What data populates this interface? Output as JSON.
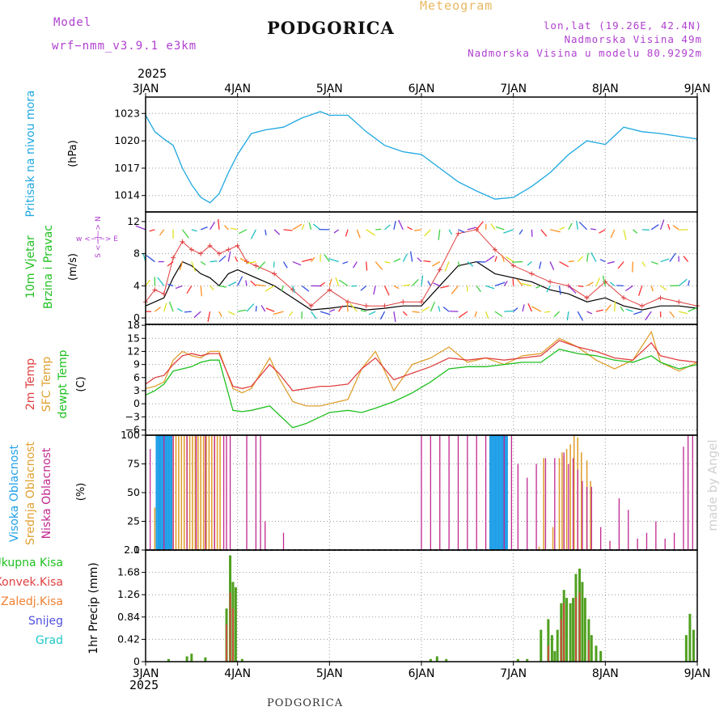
{
  "header": {
    "model_label": "Model",
    "model_name": "wrf−nmm_v3.9.1  e3km",
    "title": "PODGORICA",
    "subtitle": "Meteogram",
    "lonlat": "lon,lat (19.26E, 42.4N)",
    "altitude": "Nadmorska Visina 49m",
    "model_altitude": "Nadmorska Visina u modelu 80.9292m",
    "year_top": "2025",
    "year_bottom": "2025",
    "bottom_title": "PODGORICA",
    "watermark": "made by Angel"
  },
  "colors": {
    "pressure": "#1ea8e0",
    "temp2m": "#e04040",
    "sfc": "#e0a030",
    "dew": "#20c020",
    "high_cloud": "#20a0e8",
    "mid_cloud": "#e0a030",
    "low_cloud": "#c02890",
    "precip": "#50a020",
    "conv": "#e04040"
  },
  "chart_data": [
    {
      "type": "line",
      "title": "Pritisak na nivou mora",
      "ylabel": "(hPa)",
      "x_labels": [
        "3JAN",
        "4JAN",
        "5JAN",
        "6JAN",
        "7JAN",
        "8JAN",
        "9JAN"
      ],
      "yticks": [
        "1014",
        "1017",
        "1020",
        "1023"
      ],
      "ylim": [
        1012.2,
        1024.8
      ],
      "series": [
        {
          "name": "Pritisak",
          "x": [
            0,
            0.1,
            0.2,
            0.3,
            0.4,
            0.5,
            0.6,
            0.7,
            0.8,
            0.9,
            1.0,
            1.15,
            1.3,
            1.5,
            1.7,
            1.9,
            2.0,
            2.2,
            2.4,
            2.6,
            2.8,
            3.0,
            3.2,
            3.4,
            3.6,
            3.8,
            4.0,
            4.2,
            4.4,
            4.6,
            4.8,
            5.0,
            5.2,
            5.4,
            5.6,
            5.8,
            6.0
          ],
          "values": [
            1022.8,
            1021.0,
            1020.2,
            1019.5,
            1017.0,
            1015.2,
            1013.8,
            1013.2,
            1014.2,
            1016.5,
            1018.5,
            1020.8,
            1021.2,
            1021.5,
            1022.5,
            1023.2,
            1022.8,
            1022.8,
            1021.0,
            1019.5,
            1018.8,
            1018.5,
            1017.0,
            1015.5,
            1014.5,
            1013.6,
            1013.8,
            1015.0,
            1016.5,
            1018.5,
            1020.0,
            1019.6,
            1021.5,
            1021.0,
            1020.8,
            1020.5,
            1020.2
          ]
        }
      ]
    },
    {
      "type": "line",
      "title": "10m Vjetar Brzina i Pravac",
      "ylabel": "(m/s)",
      "compass_label": "w <−|−> E",
      "compass_ns": "S <−|−> N",
      "yticks": [
        "0",
        "4",
        "8",
        "12"
      ],
      "ylim": [
        -0.8,
        13.2
      ],
      "series": [
        {
          "name": "Brzina",
          "x": [
            0,
            0.1,
            0.2,
            0.3,
            0.4,
            0.5,
            0.6,
            0.7,
            0.8,
            0.9,
            1.0,
            1.1,
            1.2,
            1.4,
            1.6,
            1.8,
            2.0,
            2.2,
            2.4,
            2.6,
            2.8,
            3.0,
            3.2,
            3.4,
            3.6,
            3.8,
            4.0,
            4.2,
            4.4,
            4.6,
            4.8,
            5.0,
            5.2,
            5.4,
            5.6,
            5.8,
            6.0
          ],
          "values": [
            1.5,
            2.0,
            2.5,
            5.0,
            7.0,
            6.5,
            5.5,
            5.0,
            4.0,
            5.5,
            6.0,
            5.5,
            5.0,
            4.0,
            2.5,
            1.0,
            1.2,
            1.5,
            1.0,
            1.2,
            1.5,
            1.5,
            4.0,
            6.5,
            7.0,
            5.5,
            5.0,
            4.5,
            3.5,
            3.0,
            2.0,
            2.5,
            1.5,
            1.0,
            1.5,
            1.5,
            1.2
          ]
        },
        {
          "name": "Udari",
          "x": [
            0,
            0.1,
            0.2,
            0.3,
            0.4,
            0.5,
            0.6,
            0.7,
            0.8,
            0.9,
            1.0,
            1.1,
            1.2,
            1.4,
            1.6,
            1.8,
            2.0,
            2.2,
            2.4,
            2.6,
            2.8,
            3.0,
            3.2,
            3.4,
            3.6,
            3.8,
            4.0,
            4.2,
            4.4,
            4.6,
            4.8,
            5.0,
            5.2,
            5.4,
            5.6,
            5.8,
            6.0
          ],
          "values": [
            2.0,
            3.5,
            3.0,
            7.5,
            9.5,
            8.5,
            8.0,
            9.0,
            8.0,
            8.5,
            9.0,
            7.0,
            6.5,
            5.5,
            3.5,
            1.5,
            3.5,
            2.0,
            1.5,
            1.5,
            2.0,
            2.0,
            6.0,
            10.5,
            11.0,
            8.5,
            6.5,
            5.5,
            4.5,
            4.0,
            2.5,
            4.5,
            2.5,
            1.5,
            2.5,
            2.0,
            1.5
          ]
        }
      ]
    },
    {
      "type": "line",
      "title": "2m Temp / SFC Temp / dewpt Temp",
      "ylabel": "(C)",
      "yticks": [
        "−6",
        "−3",
        "0",
        "3",
        "6",
        "9",
        "12",
        "15",
        "18"
      ],
      "ylim": [
        -7.2,
        18.2
      ],
      "series": [
        {
          "name": "2m Temp",
          "x": [
            0,
            0.1,
            0.2,
            0.3,
            0.4,
            0.5,
            0.6,
            0.7,
            0.8,
            0.95,
            1.05,
            1.15,
            1.35,
            1.45,
            1.6,
            1.75,
            1.9,
            2.0,
            2.2,
            2.35,
            2.5,
            2.7,
            2.9,
            3.1,
            3.3,
            3.5,
            3.7,
            3.9,
            4.1,
            4.3,
            4.5,
            4.7,
            4.9,
            5.1,
            5.3,
            5.5,
            5.6,
            5.8,
            6.0
          ],
          "values": [
            4.5,
            6.0,
            6.5,
            9.0,
            11.0,
            11.5,
            11.0,
            11.5,
            11.5,
            4.0,
            3.5,
            4.0,
            9.0,
            7.0,
            3.0,
            3.5,
            4.0,
            4.0,
            4.5,
            8.0,
            10.5,
            5.5,
            7.0,
            8.5,
            10.5,
            10.0,
            10.5,
            10.0,
            10.5,
            11.0,
            14.5,
            13.0,
            12.0,
            10.5,
            10.0,
            14.0,
            11.0,
            10.0,
            9.5
          ]
        },
        {
          "name": "SFC Temp",
          "x": [
            0,
            0.1,
            0.2,
            0.3,
            0.4,
            0.5,
            0.6,
            0.7,
            0.8,
            0.95,
            1.05,
            1.15,
            1.35,
            1.45,
            1.6,
            1.75,
            1.9,
            2.0,
            2.2,
            2.35,
            2.5,
            2.7,
            2.9,
            3.1,
            3.3,
            3.5,
            3.7,
            3.9,
            4.1,
            4.3,
            4.5,
            4.7,
            4.9,
            5.1,
            5.3,
            5.5,
            5.6,
            5.8,
            6.0
          ],
          "values": [
            3.5,
            4.0,
            5.0,
            10.0,
            12.0,
            11.0,
            10.5,
            12.0,
            12.0,
            3.5,
            2.5,
            3.5,
            10.5,
            6.0,
            0.5,
            -0.5,
            -0.5,
            0.0,
            1.0,
            8.0,
            12.0,
            3.0,
            9.0,
            10.5,
            13.0,
            9.5,
            10.5,
            9.0,
            11.0,
            11.5,
            15.0,
            13.0,
            10.0,
            8.0,
            10.0,
            16.5,
            9.5,
            7.5,
            9.5
          ]
        },
        {
          "name": "dewpt Temp",
          "x": [
            0,
            0.1,
            0.2,
            0.3,
            0.4,
            0.5,
            0.6,
            0.7,
            0.8,
            0.95,
            1.05,
            1.15,
            1.35,
            1.45,
            1.6,
            1.75,
            1.9,
            2.0,
            2.2,
            2.35,
            2.5,
            2.7,
            2.9,
            3.1,
            3.3,
            3.5,
            3.7,
            3.9,
            4.1,
            4.3,
            4.5,
            4.7,
            4.9,
            5.1,
            5.3,
            5.5,
            5.6,
            5.8,
            6.0
          ],
          "values": [
            2.0,
            3.0,
            4.5,
            7.5,
            8.0,
            8.5,
            9.5,
            10.0,
            10.0,
            -1.5,
            -1.8,
            -1.5,
            -0.5,
            -2.5,
            -5.5,
            -4.5,
            -3.0,
            -2.0,
            -1.5,
            -2.0,
            -1.0,
            0.5,
            2.5,
            5.0,
            8.0,
            8.5,
            8.5,
            9.0,
            9.5,
            9.5,
            12.5,
            11.5,
            11.0,
            10.0,
            9.5,
            11.0,
            9.5,
            8.0,
            9.0
          ]
        }
      ]
    },
    {
      "type": "bar",
      "title": "Visoka / Srednja / Niska Oblacnost",
      "ylabel": "(%)",
      "yticks": [
        "0",
        "25",
        "50",
        "75",
        "100"
      ],
      "ylim": [
        0,
        100
      ],
      "series": [
        {
          "name": "Visoka Oblacnost",
          "x": [
            0.12,
            0.14,
            0.16,
            0.18,
            0.2,
            0.22,
            0.24,
            0.26,
            0.28,
            3.75,
            3.77,
            3.79,
            3.81,
            3.83,
            3.85,
            3.87,
            3.89,
            3.91,
            3.93
          ],
          "values": [
            100,
            100,
            100,
            100,
            100,
            100,
            100,
            100,
            100,
            100,
            100,
            100,
            100,
            100,
            100,
            100,
            100,
            100,
            100
          ]
        },
        {
          "name": "Srednja Oblacnost",
          "x": [
            0.1,
            0.3,
            0.33,
            0.36,
            0.39,
            0.42,
            0.45,
            0.48,
            0.51,
            0.54,
            0.57,
            0.6,
            0.63,
            0.66,
            0.69,
            0.72,
            0.75,
            0.78,
            0.81,
            4.28,
            4.33,
            4.43,
            4.5,
            4.53,
            4.55,
            4.58,
            4.62,
            4.66,
            4.7,
            4.74,
            4.8,
            4.84
          ],
          "values": [
            37,
            100,
            100,
            100,
            100,
            100,
            100,
            100,
            100,
            100,
            100,
            100,
            100,
            100,
            100,
            100,
            100,
            100,
            100,
            3,
            80,
            20,
            80,
            85,
            82,
            88,
            92,
            100,
            98,
            85,
            78,
            60
          ]
        },
        {
          "name": "Niska Oblacnost",
          "x": [
            0.05,
            0.2,
            0.3,
            0.45,
            0.55,
            0.65,
            0.75,
            0.85,
            0.88,
            0.92,
            1.1,
            1.2,
            1.25,
            1.3,
            1.5,
            3.0,
            3.1,
            3.2,
            3.3,
            3.4,
            3.5,
            3.6,
            3.7,
            3.9,
            3.98,
            4.05,
            4.15,
            4.25,
            4.35,
            4.45,
            4.55,
            4.6,
            4.65,
            4.7,
            4.75,
            4.8,
            4.85,
            4.95,
            5.05,
            5.15,
            5.25,
            5.35,
            5.45,
            5.55,
            5.65,
            5.75,
            5.85,
            5.9,
            5.95
          ],
          "values": [
            88,
            100,
            100,
            100,
            100,
            100,
            100,
            100,
            100,
            100,
            100,
            100,
            100,
            25,
            15,
            100,
            100,
            100,
            100,
            100,
            100,
            100,
            100,
            100,
            100,
            75,
            63,
            75,
            80,
            80,
            85,
            75,
            80,
            70,
            60,
            55,
            55,
            20,
            8,
            45,
            35,
            10,
            15,
            25,
            10,
            15,
            90,
            100,
            100
          ]
        }
      ]
    },
    {
      "type": "bar",
      "title": "1hr Precip",
      "ylabel": "1hr Precip (mm)",
      "legend": [
        "Ukupna Kisa",
        "Konvek.Kisa",
        "Zaledj.Kisa",
        "Snijeg",
        "Grad"
      ],
      "yticks": [
        "0",
        "0.42",
        "0.84",
        "1.26",
        "1.68",
        "2.1"
      ],
      "ylim": [
        0,
        2.1
      ],
      "series": [
        {
          "name": "Ukupna Kisa",
          "x": [
            0.25,
            0.45,
            0.5,
            0.65,
            0.88,
            0.92,
            0.95,
            0.98,
            1.05,
            3.1,
            3.17,
            3.27,
            4.05,
            4.15,
            4.3,
            4.38,
            4.42,
            4.45,
            4.48,
            4.52,
            4.55,
            4.58,
            4.62,
            4.65,
            4.68,
            4.72,
            4.75,
            4.78,
            4.82,
            4.85,
            4.9,
            4.95,
            5.88,
            5.92,
            5.96
          ],
          "values": [
            0.05,
            0.1,
            0.15,
            0.08,
            1.0,
            2.0,
            1.5,
            1.4,
            0.05,
            0.05,
            0.1,
            0.05,
            0.05,
            0.05,
            0.6,
            0.8,
            0.5,
            0.2,
            0.6,
            1.1,
            1.35,
            1.2,
            1.1,
            1.2,
            1.65,
            1.75,
            1.5,
            1.2,
            0.8,
            0.5,
            0.3,
            0.2,
            0.5,
            0.9,
            0.6
          ]
        },
        {
          "name": "Konvek.Kisa",
          "x": [
            0.88,
            0.92,
            0.95,
            4.38,
            4.52,
            4.55,
            4.68,
            4.72,
            4.82
          ],
          "values": [
            0.7,
            1.3,
            1.0,
            0.3,
            0.8,
            1.1,
            1.2,
            1.3,
            0.4
          ]
        }
      ]
    }
  ]
}
